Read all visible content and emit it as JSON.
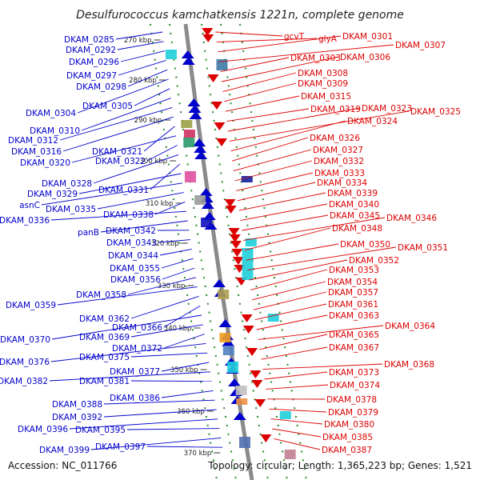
{
  "title": "Desulfurococcus kamchatkensis 1221n, complete genome",
  "footer": {
    "accession": "Accession: NC_011766",
    "topology": "Topology: circular; Length: 1,365,223 bp; Genes: 1,521"
  },
  "colors": {
    "forward": "#0000cc",
    "reverse": "#dd0000",
    "backbone": "#8a8a8a",
    "tick": "#2a8a2a",
    "cyan": "#1ecfdc"
  },
  "scale_ticks": [
    "270 kbp",
    "280 kbp",
    "290 kbp",
    "300 kbp",
    "310 kbp",
    "320 kbp",
    "330 kbp",
    "340 kbp",
    "350 kbp",
    "360 kbp",
    "370 kbp"
  ],
  "left_labels": [
    "DKAM_0285",
    "DKAM_0292",
    "DKAM_0296",
    "DKAM_0297",
    "DKAM_0298",
    "DKAM_0304",
    "DKAM_0305",
    "DKAM_0310",
    "DKAM_0312",
    "DKAM_0316",
    "DKAM_0321",
    "DKAM_0320",
    "DKAM_0322",
    "DKAM_0328",
    "DKAM_0331",
    "DKAM_0329",
    "asnC",
    "DKAM_0335",
    "DKAM_0338",
    "DKAM_0336",
    "panB",
    "DKAM_0342",
    "DKAM_0343",
    "DKAM_0344",
    "DKAM_0355",
    "DKAM_0356",
    "DKAM_0358",
    "DKAM_0359",
    "DKAM_0362",
    "DKAM_0366",
    "DKAM_0370",
    "DKAM_0369",
    "DKAM_0372",
    "DKAM_0376",
    "DKAM_0375",
    "DKAM_0377",
    "DKAM_0382",
    "DKAM_0381",
    "DKAM_0386",
    "DKAM_0388",
    "DKAM_0392",
    "DKAM_0396",
    "DKAM_0395",
    "DKAM_0399",
    "DKAM_0397"
  ],
  "right_labels": [
    "gcvT",
    "glyA",
    "DKAM_0301",
    "DKAM_0307",
    "DKAM_0303",
    "DKAM_0306",
    "DKAM_0308",
    "DKAM_0309",
    "DKAM_0315",
    "DKAM_0319",
    "DKAM_0323",
    "DKAM_0325",
    "DKAM_0324",
    "DKAM_0326",
    "DKAM_0327",
    "DKAM_0332",
    "DKAM_0333",
    "DKAM_0334",
    "DKAM_0339",
    "DKAM_0340",
    "DKAM_0345",
    "DKAM_0346",
    "DKAM_0348",
    "DKAM_0350",
    "DKAM_0351",
    "DKAM_0352",
    "DKAM_0353",
    "DKAM_0354",
    "DKAM_0357",
    "DKAM_0361",
    "DKAM_0363",
    "DKAM_0364",
    "DKAM_0365",
    "DKAM_0367",
    "DKAM_0368",
    "DKAM_0373",
    "DKAM_0374",
    "DKAM_0378",
    "DKAM_0379",
    "DKAM_0380",
    "DKAM_0385",
    "DKAM_0387"
  ]
}
